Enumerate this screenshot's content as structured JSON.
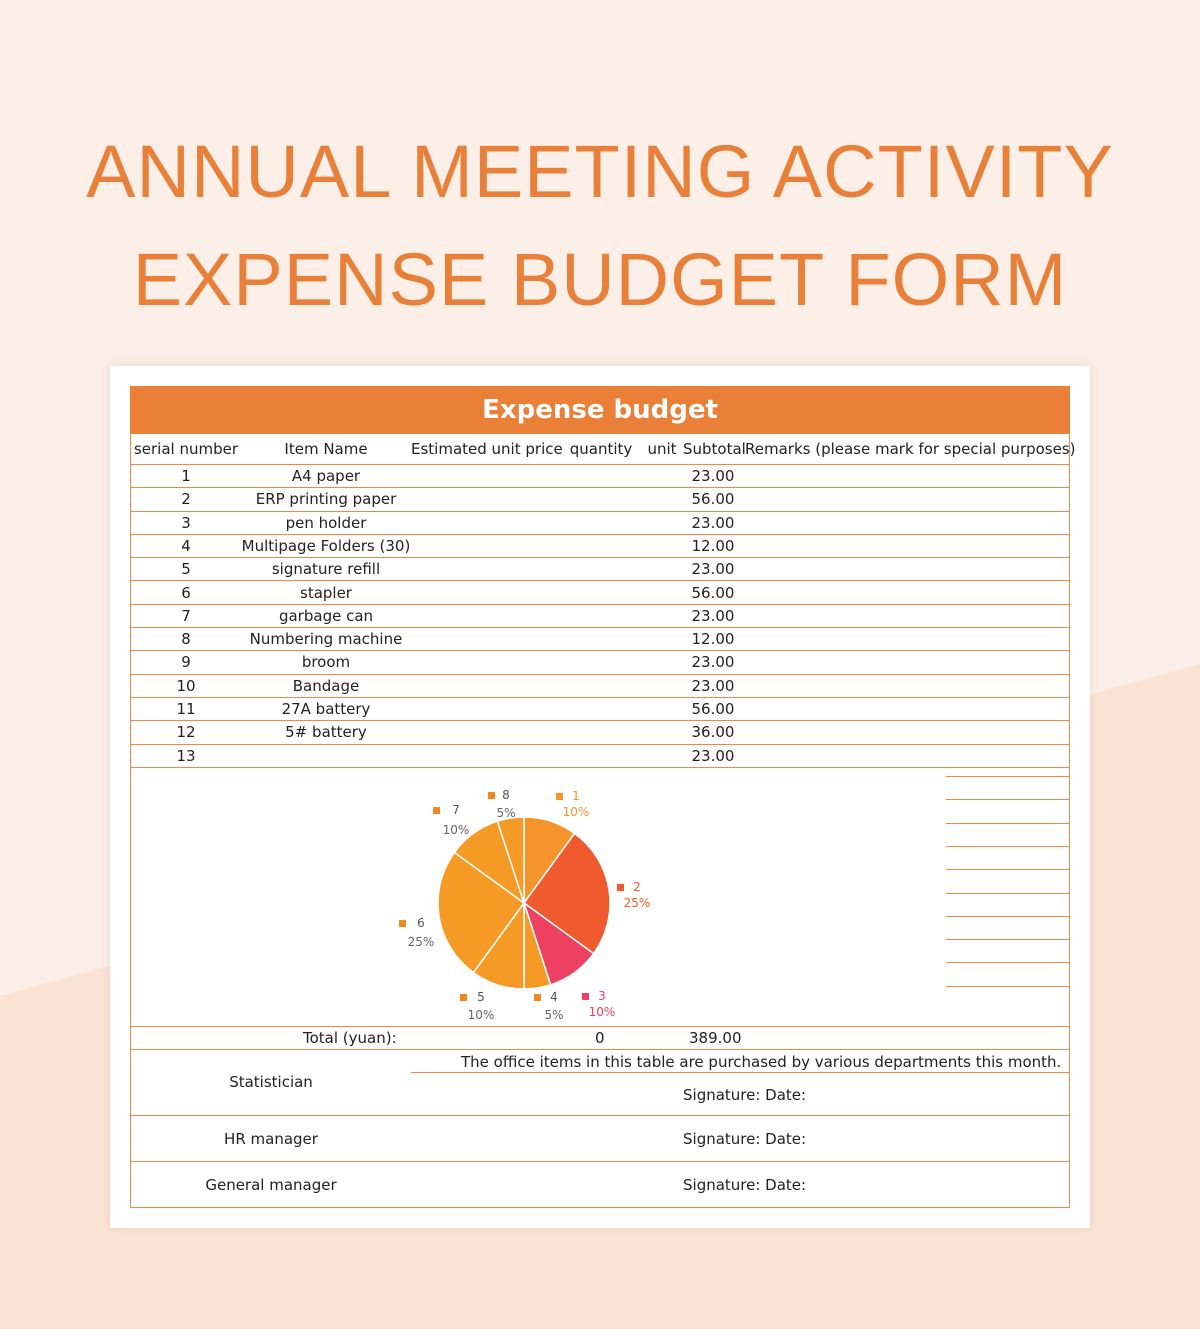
{
  "title": {
    "line1": "ANNUAL MEETING ACTIVITY",
    "line2": "EXPENSE BUDGET FORM"
  },
  "table": {
    "heading": "Expense budget",
    "columns": {
      "serial": "serial number",
      "name": "Item Name",
      "price": "Estimated unit price",
      "qty": "quantity",
      "unit": "unit",
      "subtotal": "Subtotal",
      "remarks": "Remarks (please mark for special purposes)"
    },
    "rows": [
      {
        "sn": "1",
        "name": "A4 paper",
        "subtotal": "23.00"
      },
      {
        "sn": "2",
        "name": "ERP printing paper",
        "subtotal": "56.00"
      },
      {
        "sn": "3",
        "name": "pen holder",
        "subtotal": "23.00"
      },
      {
        "sn": "4",
        "name": "Multipage Folders (30)",
        "subtotal": "12.00"
      },
      {
        "sn": "5",
        "name": "signature refill",
        "subtotal": "23.00"
      },
      {
        "sn": "6",
        "name": "stapler",
        "subtotal": "56.00"
      },
      {
        "sn": "7",
        "name": "garbage can",
        "subtotal": "23.00"
      },
      {
        "sn": "8",
        "name": "Numbering machine",
        "subtotal": "12.00"
      },
      {
        "sn": "9",
        "name": "broom",
        "subtotal": "23.00"
      },
      {
        "sn": "10",
        "name": "Bandage",
        "subtotal": "23.00"
      },
      {
        "sn": "11",
        "name": "27A battery",
        "subtotal": "56.00"
      },
      {
        "sn": "12",
        "name": "5# battery",
        "subtotal": "36.00"
      },
      {
        "sn": "13",
        "name": "",
        "subtotal": "23.00"
      }
    ],
    "total_label": "Total (yuan):",
    "total_qty": "0",
    "total_subtotal": "389.00",
    "note": "The office items in this table are purchased by various departments this month.",
    "signoffs": [
      {
        "role": "Statistician",
        "sig": "Signature: Date:"
      },
      {
        "role": "HR manager",
        "sig": "Signature: Date:"
      },
      {
        "role": "General manager",
        "sig": "Signature: Date:"
      }
    ]
  },
  "chart_data": {
    "type": "pie",
    "slices": [
      {
        "label": "1",
        "percent": 10,
        "color": "#f4942a"
      },
      {
        "label": "2",
        "percent": 25,
        "color": "#ef5a2f"
      },
      {
        "label": "3",
        "percent": 10,
        "color": "#ee4060"
      },
      {
        "label": "4",
        "percent": 5,
        "color": "#f59a24"
      },
      {
        "label": "5",
        "percent": 10,
        "color": "#f59a24"
      },
      {
        "label": "6",
        "percent": 25,
        "color": "#f59a24"
      },
      {
        "label": "7",
        "percent": 10,
        "color": "#f59a24"
      },
      {
        "label": "8",
        "percent": 5,
        "color": "#f59a24"
      }
    ],
    "label_colors": {
      "1": "#f4942a",
      "2": "#ef5a2f",
      "3": "#ee4060",
      "other_percent": "#666666",
      "other_marker": "#f08a1c"
    }
  },
  "colors": {
    "accent": "#ea7f37",
    "title": "#e8803a",
    "background": "#fcefe8"
  }
}
